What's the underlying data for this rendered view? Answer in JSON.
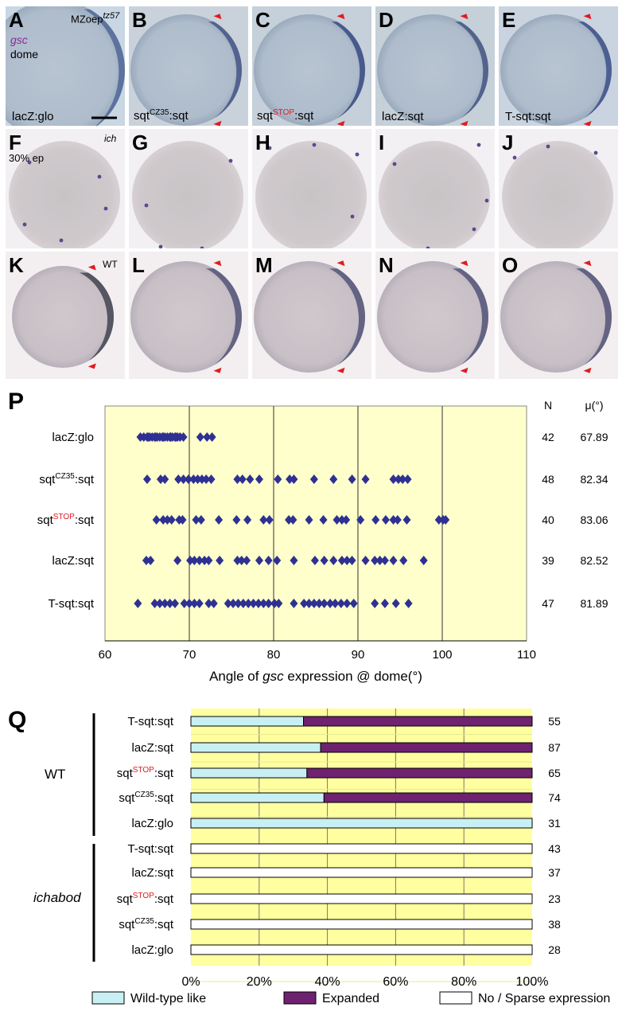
{
  "row1": {
    "panels": [
      {
        "letter": "A",
        "caption": "lacZ:glo",
        "bg": "#c9d6e4",
        "band": "#556b9a"
      },
      {
        "letter": "B",
        "caption_main": "sqt",
        "caption_sup": "CZ35",
        "caption_tail": ":sqt",
        "bg": "#c9d2da",
        "band": "#4a5a8a"
      },
      {
        "letter": "C",
        "caption_main": "sqt",
        "caption_sup": "STOP",
        "caption_tail": ":sqt",
        "bg": "#c6d0da",
        "band": "#3f5087"
      },
      {
        "letter": "D",
        "caption": "lacZ:sqt",
        "bg": "#c6d0d8",
        "band": "#4a5b86"
      },
      {
        "letter": "E",
        "caption": "T-sqt:sqt",
        "bg": "#cad4e0",
        "band": "#44568c"
      }
    ],
    "genotype_main": "MZoep",
    "genotype_sup": "tz57",
    "gene_label": "gsc",
    "stage_label": "dome"
  },
  "row2": {
    "letters": [
      "F",
      "G",
      "H",
      "I",
      "J"
    ],
    "mutant_label": "ich",
    "stage_label": "30% ep"
  },
  "row3": {
    "letters": [
      "K",
      "L",
      "M",
      "N",
      "O"
    ],
    "wt_label": "WT"
  },
  "panelP": {
    "letter": "P",
    "n_header": "N",
    "mu_header": "μ(°)",
    "xlabel_pre": "Angle of ",
    "xlabel_italic": "gsc",
    "xlabel_post": " expression @ dome(°)"
  },
  "panelQ": {
    "letter": "Q",
    "group_wt": "WT",
    "group_mut": "ichabod",
    "legend": [
      {
        "label": "Wild-type like",
        "color": "#c8f0f4"
      },
      {
        "label": "Expanded",
        "color": "#6e2270"
      },
      {
        "label": "No / Sparse expression",
        "color": "#ffffff"
      }
    ]
  },
  "chart_data": [
    {
      "type": "scatter",
      "xlim": [
        60,
        110
      ],
      "xticks": [
        "60",
        "70",
        "80",
        "90",
        "100",
        "110"
      ],
      "xlabel": "Angle of gsc expression @ dome(°)",
      "grid": "vertical",
      "background": "#ffffcc",
      "marker_color": "#2e3192",
      "series": [
        {
          "name": "lacZ:glo",
          "n": "42",
          "mu": "67.89",
          "values": [
            64.2,
            64.6,
            65.0,
            65.3,
            65.6,
            65.9,
            66.2,
            66.5,
            66.8,
            67.1,
            67.4,
            67.7,
            68.0,
            68.3,
            68.6,
            68.9,
            65.1,
            66.0,
            66.9,
            67.8,
            68.4,
            69.3,
            71.3,
            72.1,
            72.7
          ]
        },
        {
          "name": "sqtCZ35:sqt",
          "name_main": "sqt",
          "name_sup": "CZ35",
          "name_tail": ":sqt",
          "n": "48",
          "mu": "82.34",
          "values": [
            65.0,
            66.6,
            67.1,
            68.7,
            69.3,
            69.9,
            70.5,
            71.0,
            71.5,
            72.0,
            72.6,
            75.7,
            76.3,
            77.2,
            78.3,
            80.5,
            81.9,
            82.4,
            84.8,
            87.1,
            89.3,
            90.9,
            94.2,
            94.8,
            95.3,
            95.9
          ]
        },
        {
          "name": "sqtSTOP:sqt",
          "name_main": "sqt",
          "name_sup": "STOP",
          "name_tail": ":sqt",
          "n": "40",
          "mu": "83.06",
          "values": [
            66.1,
            66.9,
            67.4,
            67.9,
            68.8,
            69.2,
            70.8,
            71.4,
            73.5,
            75.6,
            76.9,
            78.8,
            79.5,
            81.8,
            82.3,
            84.2,
            85.9,
            87.5,
            88.1,
            88.6,
            90.3,
            92.1,
            93.3,
            94.2,
            94.7,
            95.8,
            99.6,
            100.1,
            100.4
          ]
        },
        {
          "name": "lacZ:sqt",
          "n": "39",
          "mu": "82.52",
          "values": [
            64.9,
            65.4,
            68.6,
            70.1,
            70.6,
            71.2,
            71.8,
            72.3,
            73.6,
            75.7,
            76.2,
            76.8,
            78.3,
            79.4,
            80.4,
            82.4,
            84.9,
            86.0,
            87.1,
            88.1,
            88.7,
            89.3,
            90.9,
            92.0,
            92.6,
            93.2,
            94.2,
            95.4,
            97.8
          ]
        },
        {
          "name": "T-sqt:sqt",
          "n": "47",
          "mu": "81.89",
          "values": [
            63.9,
            65.9,
            66.5,
            67.1,
            67.7,
            68.3,
            69.4,
            70.0,
            70.6,
            71.2,
            72.3,
            72.9,
            74.6,
            75.2,
            75.8,
            76.4,
            77.0,
            77.6,
            78.2,
            78.8,
            79.4,
            80.1,
            80.6,
            82.4,
            83.6,
            84.2,
            84.8,
            85.4,
            86.0,
            86.7,
            87.3,
            88.0,
            88.7,
            89.5,
            92.0,
            93.2,
            94.5,
            96.0
          ]
        }
      ]
    },
    {
      "type": "bar",
      "orientation": "horizontal",
      "stacked": true,
      "xlim": [
        0,
        100
      ],
      "xticks": [
        "0%",
        "20%",
        "40%",
        "60%",
        "80%",
        "100%"
      ],
      "series_names": [
        "Wild-type like",
        "Expanded",
        "No / Sparse expression"
      ],
      "categories": [
        {
          "group": "WT",
          "name": "T-sqt:sqt",
          "wt_like": 33,
          "expanded": 67,
          "none": 0,
          "n": "55"
        },
        {
          "group": "WT",
          "name": "lacZ:sqt",
          "wt_like": 38,
          "expanded": 62,
          "none": 0,
          "n": "87"
        },
        {
          "group": "WT",
          "name": "sqtSTOP:sqt",
          "name_main": "sqt",
          "name_sup": "STOP",
          "name_tail": ":sqt",
          "wt_like": 34,
          "expanded": 66,
          "none": 0,
          "n": "65"
        },
        {
          "group": "WT",
          "name": "sqtCZ35:sqt",
          "name_main": "sqt",
          "name_sup": "CZ35",
          "name_tail": ":sqt",
          "wt_like": 39,
          "expanded": 61,
          "none": 0,
          "n": "74"
        },
        {
          "group": "WT",
          "name": "lacZ:glo",
          "wt_like": 100,
          "expanded": 0,
          "none": 0,
          "n": "31"
        },
        {
          "group": "ichabod",
          "name": "T-sqt:sqt",
          "wt_like": 0,
          "expanded": 0,
          "none": 100,
          "n": "43"
        },
        {
          "group": "ichabod",
          "name": "lacZ:sqt",
          "wt_like": 0,
          "expanded": 0,
          "none": 100,
          "n": "37"
        },
        {
          "group": "ichabod",
          "name": "sqtSTOP:sqt",
          "name_main": "sqt",
          "name_sup": "STOP",
          "name_tail": ":sqt",
          "wt_like": 0,
          "expanded": 0,
          "none": 100,
          "n": "23"
        },
        {
          "group": "ichabod",
          "name": "sqtCZ35:sqt",
          "name_main": "sqt",
          "name_sup": "CZ35",
          "name_tail": ":sqt",
          "wt_like": 0,
          "expanded": 0,
          "none": 100,
          "n": "38"
        },
        {
          "group": "ichabod",
          "name": "lacZ:glo",
          "wt_like": 0,
          "expanded": 0,
          "none": 100,
          "n": "28"
        }
      ]
    }
  ]
}
